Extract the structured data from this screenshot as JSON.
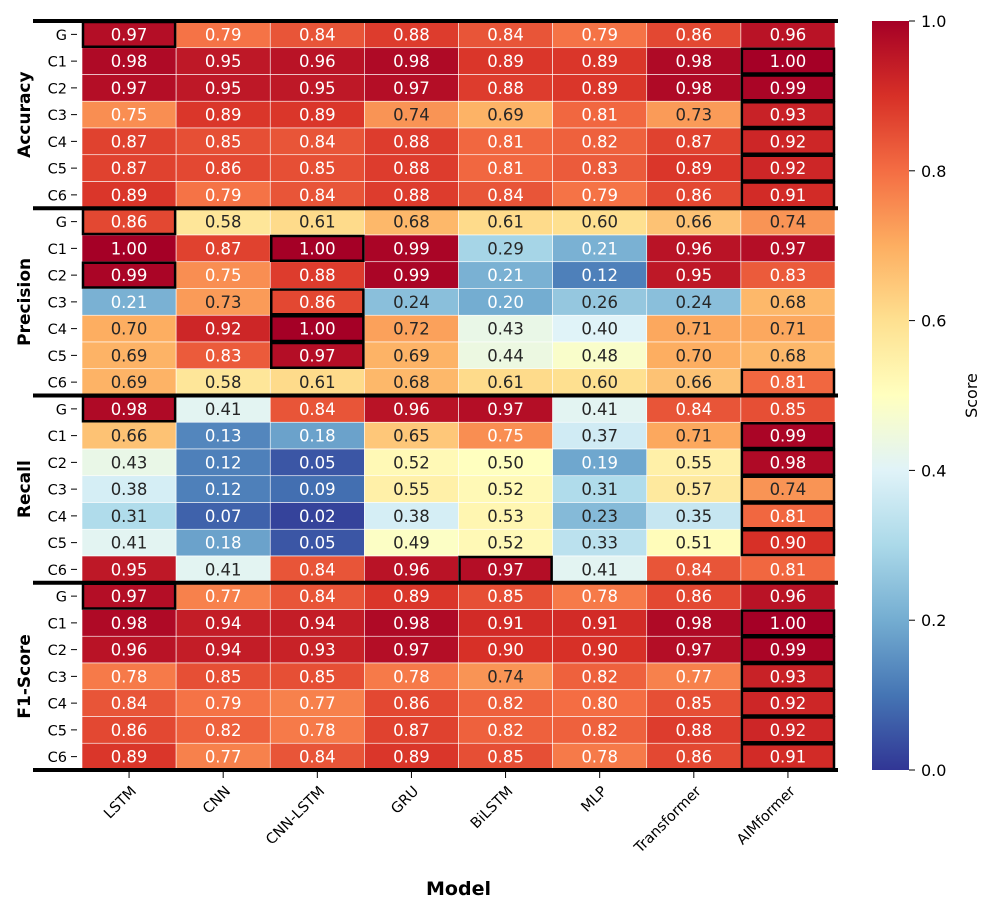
{
  "chart_data": {
    "type": "heatmap",
    "xlabel": "Model",
    "columns": [
      "LSTM",
      "CNN",
      "CNN-LSTM",
      "GRU",
      "BiLSTM",
      "MLP",
      "Transformer",
      "AIMformer"
    ],
    "row_labels": [
      "G",
      "C1",
      "C2",
      "C3",
      "C4",
      "C5",
      "C6"
    ],
    "colorbar": {
      "label": "Score",
      "range": [
        0.0,
        1.0
      ],
      "ticks": [
        "0.0",
        "0.2",
        "0.4",
        "0.6",
        "0.8",
        "1.0"
      ],
      "colormap": "RdYlBu_r"
    },
    "groups": [
      {
        "name": "Accuracy",
        "values": [
          [
            "0.97",
            "0.79",
            "0.84",
            "0.88",
            "0.84",
            "0.79",
            "0.86",
            "0.96"
          ],
          [
            "0.98",
            "0.95",
            "0.96",
            "0.98",
            "0.89",
            "0.89",
            "0.98",
            "1.00"
          ],
          [
            "0.97",
            "0.95",
            "0.95",
            "0.97",
            "0.88",
            "0.89",
            "0.98",
            "0.99"
          ],
          [
            "0.75",
            "0.89",
            "0.89",
            "0.74",
            "0.69",
            "0.81",
            "0.73",
            "0.93"
          ],
          [
            "0.87",
            "0.85",
            "0.84",
            "0.88",
            "0.81",
            "0.82",
            "0.87",
            "0.92"
          ],
          [
            "0.87",
            "0.86",
            "0.85",
            "0.88",
            "0.81",
            "0.83",
            "0.89",
            "0.92"
          ],
          [
            "0.89",
            "0.79",
            "0.84",
            "0.88",
            "0.84",
            "0.79",
            "0.86",
            "0.91"
          ]
        ],
        "highlighted": [
          [
            0,
            0
          ],
          [
            1,
            7
          ],
          [
            2,
            7
          ],
          [
            3,
            7
          ],
          [
            4,
            7
          ],
          [
            5,
            7
          ],
          [
            6,
            7
          ]
        ]
      },
      {
        "name": "Precision",
        "values": [
          [
            "0.86",
            "0.58",
            "0.61",
            "0.68",
            "0.61",
            "0.60",
            "0.66",
            "0.74"
          ],
          [
            "1.00",
            "0.87",
            "1.00",
            "0.99",
            "0.29",
            "0.21",
            "0.96",
            "0.97"
          ],
          [
            "0.99",
            "0.75",
            "0.88",
            "0.99",
            "0.21",
            "0.12",
            "0.95",
            "0.83"
          ],
          [
            "0.21",
            "0.73",
            "0.86",
            "0.24",
            "0.20",
            "0.26",
            "0.24",
            "0.68"
          ],
          [
            "0.70",
            "0.92",
            "1.00",
            "0.72",
            "0.43",
            "0.40",
            "0.71",
            "0.71"
          ],
          [
            "0.69",
            "0.83",
            "0.97",
            "0.69",
            "0.44",
            "0.48",
            "0.70",
            "0.68"
          ],
          [
            "0.69",
            "0.58",
            "0.61",
            "0.68",
            "0.61",
            "0.60",
            "0.66",
            "0.81"
          ]
        ],
        "highlighted": [
          [
            0,
            0
          ],
          [
            1,
            2
          ],
          [
            2,
            0
          ],
          [
            3,
            2
          ],
          [
            4,
            2
          ],
          [
            5,
            2
          ],
          [
            6,
            7
          ]
        ]
      },
      {
        "name": "Recall",
        "values": [
          [
            "0.98",
            "0.41",
            "0.84",
            "0.96",
            "0.97",
            "0.41",
            "0.84",
            "0.85"
          ],
          [
            "0.66",
            "0.13",
            "0.18",
            "0.65",
            "0.75",
            "0.37",
            "0.71",
            "0.99"
          ],
          [
            "0.43",
            "0.12",
            "0.05",
            "0.52",
            "0.50",
            "0.19",
            "0.55",
            "0.98"
          ],
          [
            "0.38",
            "0.12",
            "0.09",
            "0.55",
            "0.52",
            "0.31",
            "0.57",
            "0.74"
          ],
          [
            "0.31",
            "0.07",
            "0.02",
            "0.38",
            "0.53",
            "0.23",
            "0.35",
            "0.81"
          ],
          [
            "0.41",
            "0.18",
            "0.05",
            "0.49",
            "0.52",
            "0.33",
            "0.51",
            "0.90"
          ],
          [
            "0.95",
            "0.41",
            "0.84",
            "0.96",
            "0.97",
            "0.41",
            "0.84",
            "0.81"
          ]
        ],
        "highlighted": [
          [
            0,
            0
          ],
          [
            1,
            7
          ],
          [
            2,
            7
          ],
          [
            3,
            7
          ],
          [
            4,
            7
          ],
          [
            5,
            7
          ],
          [
            6,
            4
          ]
        ]
      },
      {
        "name": "F1-Score",
        "values": [
          [
            "0.97",
            "0.77",
            "0.84",
            "0.89",
            "0.85",
            "0.78",
            "0.86",
            "0.96"
          ],
          [
            "0.98",
            "0.94",
            "0.94",
            "0.98",
            "0.91",
            "0.91",
            "0.98",
            "1.00"
          ],
          [
            "0.96",
            "0.94",
            "0.93",
            "0.97",
            "0.90",
            "0.90",
            "0.97",
            "0.99"
          ],
          [
            "0.78",
            "0.85",
            "0.85",
            "0.78",
            "0.74",
            "0.82",
            "0.77",
            "0.93"
          ],
          [
            "0.84",
            "0.79",
            "0.77",
            "0.86",
            "0.82",
            "0.80",
            "0.85",
            "0.92"
          ],
          [
            "0.86",
            "0.82",
            "0.78",
            "0.87",
            "0.82",
            "0.82",
            "0.88",
            "0.92"
          ],
          [
            "0.89",
            "0.77",
            "0.84",
            "0.89",
            "0.85",
            "0.78",
            "0.86",
            "0.91"
          ]
        ],
        "highlighted": [
          [
            0,
            0
          ],
          [
            1,
            7
          ],
          [
            2,
            7
          ],
          [
            3,
            7
          ],
          [
            4,
            7
          ],
          [
            5,
            7
          ],
          [
            6,
            7
          ]
        ]
      }
    ]
  }
}
